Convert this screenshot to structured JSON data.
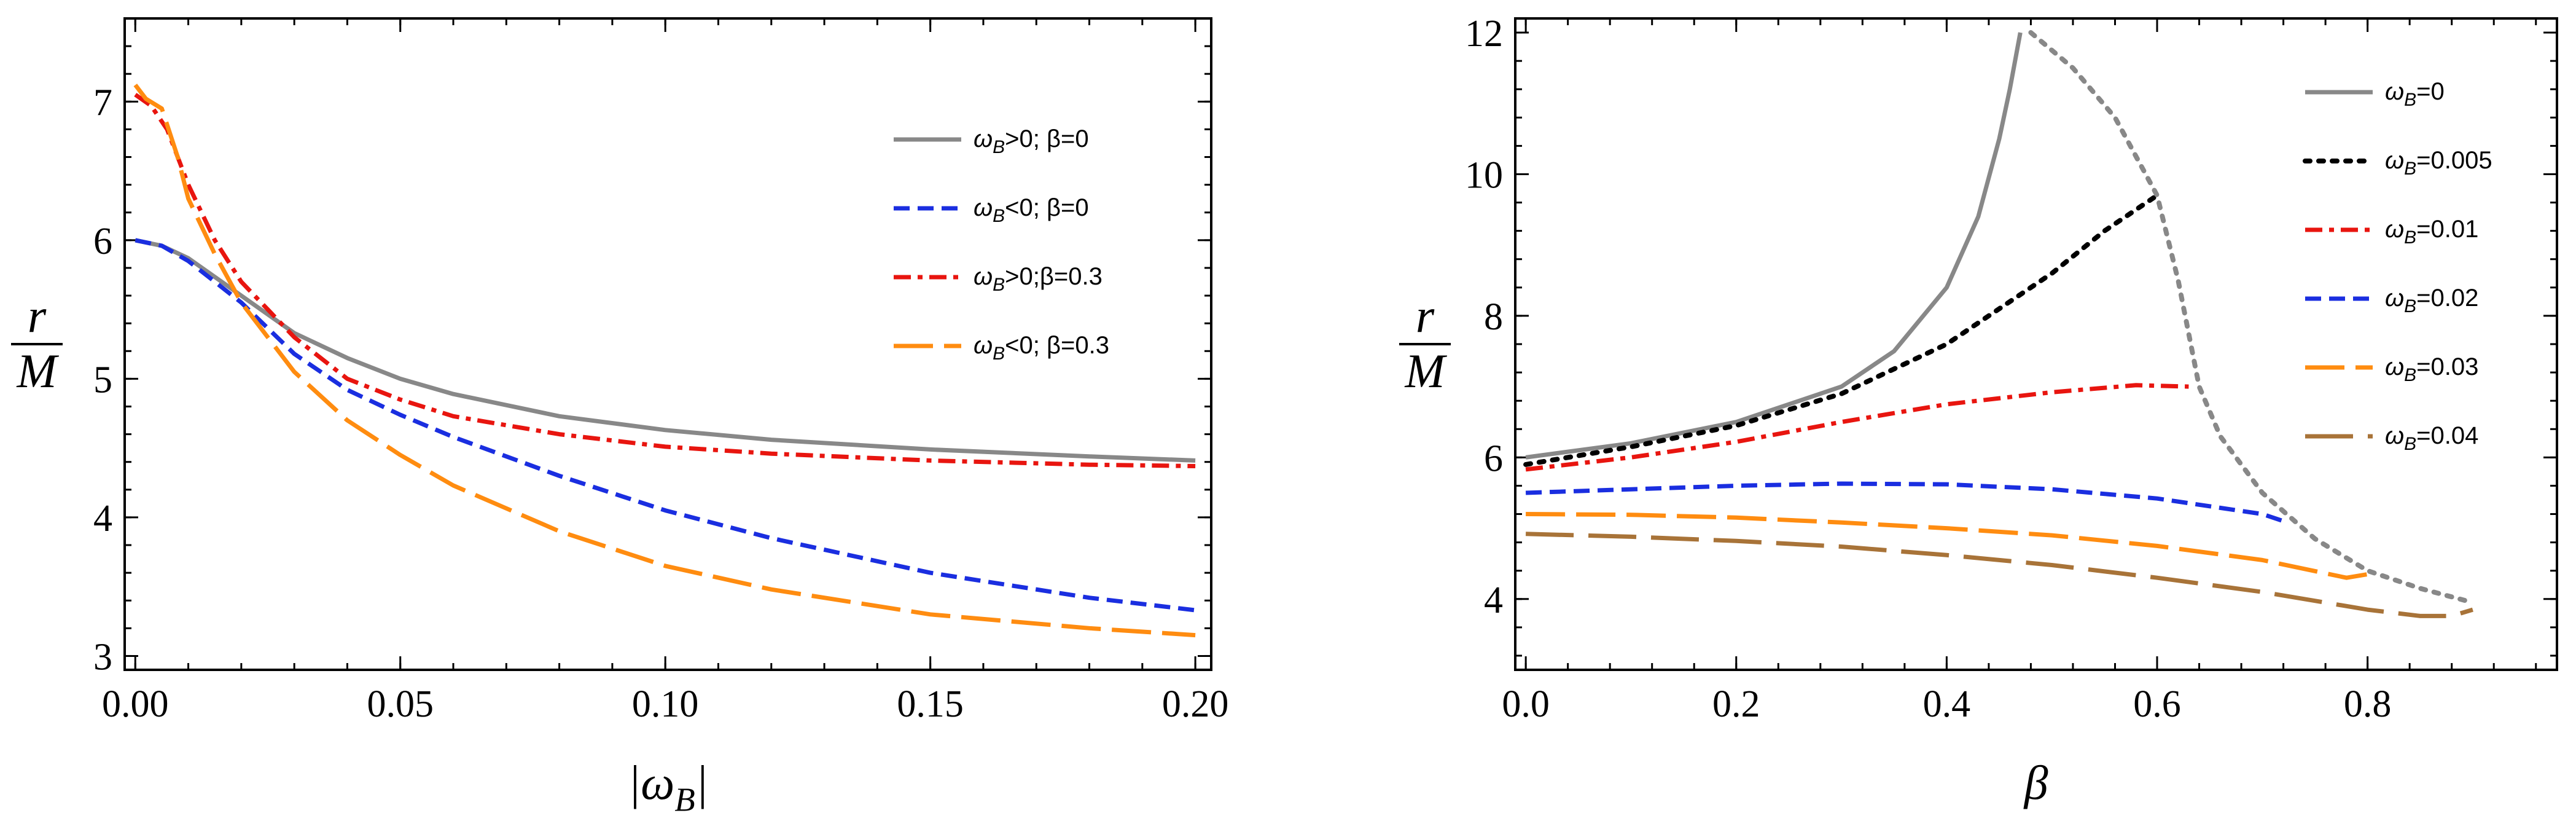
{
  "colors": {
    "gray": "#888888",
    "black": "#000000",
    "red": "#e8150f",
    "blue": "#1a2ee0",
    "orange": "#ff8c10",
    "brown": "#a87338"
  },
  "chart_data": [
    {
      "type": "line",
      "xlabel": "|ω_B|",
      "ylabel_numerator": "r",
      "ylabel_denominator": "M",
      "xlim": [
        -0.002,
        0.203
      ],
      "ylim": [
        2.9,
        7.6
      ],
      "xticks": [
        0.0,
        0.05,
        0.1,
        0.15,
        0.2
      ],
      "xtick_labels": [
        "0.00",
        "0.05",
        "0.10",
        "0.15",
        "0.20"
      ],
      "yticks": [
        3,
        4,
        5,
        6,
        7
      ],
      "ytick_labels": [
        "3",
        "4",
        "5",
        "6",
        "7"
      ],
      "legend_position": "top-right",
      "series": [
        {
          "name": "ω_B>0; β=0",
          "legend_label": "ωB>0; β=0",
          "color": "gray",
          "dash": "solid",
          "x": [
            0,
            0.005,
            0.01,
            0.02,
            0.03,
            0.04,
            0.05,
            0.06,
            0.08,
            0.1,
            0.12,
            0.15,
            0.18,
            0.2
          ],
          "y": [
            6.0,
            5.96,
            5.87,
            5.6,
            5.33,
            5.15,
            5.0,
            4.89,
            4.73,
            4.63,
            4.56,
            4.49,
            4.44,
            4.41
          ]
        },
        {
          "name": "ω_B<0; β=0",
          "legend_label": "ωB<0; β=0",
          "color": "blue",
          "dash": "dashed",
          "x": [
            0,
            0.005,
            0.01,
            0.02,
            0.03,
            0.04,
            0.05,
            0.06,
            0.08,
            0.1,
            0.12,
            0.15,
            0.18,
            0.2
          ],
          "y": [
            6.0,
            5.96,
            5.85,
            5.55,
            5.18,
            4.92,
            4.74,
            4.58,
            4.3,
            4.05,
            3.85,
            3.6,
            3.42,
            3.33
          ]
        },
        {
          "name": "ω_B>0; β=0.3",
          "legend_label": "ωB>0;β=0.3",
          "color": "red",
          "dash": "dash-dot",
          "x": [
            0,
            0.003,
            0.006,
            0.01,
            0.015,
            0.02,
            0.025,
            0.03,
            0.04,
            0.05,
            0.06,
            0.08,
            0.1,
            0.12,
            0.15,
            0.18,
            0.2
          ],
          "y": [
            7.05,
            6.97,
            6.8,
            6.4,
            6.0,
            5.7,
            5.5,
            5.3,
            5.0,
            4.85,
            4.73,
            4.6,
            4.51,
            4.46,
            4.41,
            4.38,
            4.37
          ]
        },
        {
          "name": "ω_B<0; β=0.3",
          "legend_label": "ωB<0; β=0.3",
          "color": "orange",
          "dash": "long-dash",
          "x": [
            0,
            0.002,
            0.005,
            0.008,
            0.01,
            0.015,
            0.02,
            0.025,
            0.03,
            0.04,
            0.05,
            0.06,
            0.08,
            0.1,
            0.12,
            0.15,
            0.18,
            0.2
          ],
          "y": [
            7.12,
            7.02,
            6.95,
            6.6,
            6.3,
            5.9,
            5.55,
            5.3,
            5.05,
            4.7,
            4.45,
            4.23,
            3.9,
            3.65,
            3.48,
            3.3,
            3.2,
            3.15
          ]
        }
      ]
    },
    {
      "type": "line",
      "xlabel": "β",
      "ylabel_numerator": "r",
      "ylabel_denominator": "M",
      "xlim": [
        -0.01,
        0.98
      ],
      "ylim": [
        3.0,
        12.2
      ],
      "xticks": [
        0.0,
        0.2,
        0.4,
        0.6,
        0.8
      ],
      "xtick_labels": [
        "0.0",
        "0.2",
        "0.4",
        "0.6",
        "0.8"
      ],
      "yticks": [
        4,
        6,
        8,
        10,
        12
      ],
      "ytick_labels": [
        "4",
        "6",
        "8",
        "10",
        "12"
      ],
      "legend_position": "top-right",
      "series": [
        {
          "name": "ω_B=0",
          "legend_label": "ωB=0",
          "color": "gray",
          "dash": "solid",
          "x": [
            0,
            0.1,
            0.2,
            0.3,
            0.35,
            0.4,
            0.43,
            0.45,
            0.46,
            0.47
          ],
          "y": [
            6.0,
            6.2,
            6.5,
            7.0,
            7.5,
            8.4,
            9.4,
            10.5,
            11.2,
            12.0
          ]
        },
        {
          "name": "ω_B=0.005",
          "legend_label": "ωB=0.005",
          "color": "black",
          "dash": "dotted",
          "x": [
            0,
            0.1,
            0.2,
            0.3,
            0.4,
            0.5,
            0.55,
            0.6
          ],
          "y": [
            5.9,
            6.15,
            6.45,
            6.9,
            7.6,
            8.6,
            9.2,
            9.7
          ]
        },
        {
          "name": "ω_B=0.01",
          "legend_label": "ωB=0.01",
          "color": "red",
          "dash": "dash-dot",
          "x": [
            0,
            0.1,
            0.2,
            0.3,
            0.4,
            0.5,
            0.58,
            0.63
          ],
          "y": [
            5.83,
            6.0,
            6.22,
            6.5,
            6.75,
            6.92,
            7.02,
            7.0
          ]
        },
        {
          "name": "ω_B=0.02",
          "legend_label": "ωB=0.02",
          "color": "blue",
          "dash": "dashed",
          "x": [
            0,
            0.1,
            0.2,
            0.3,
            0.4,
            0.5,
            0.6,
            0.7,
            0.72
          ],
          "y": [
            5.5,
            5.55,
            5.6,
            5.63,
            5.62,
            5.55,
            5.42,
            5.2,
            5.1
          ]
        },
        {
          "name": "ω_B=0.03",
          "legend_label": "ωB=0.03",
          "color": "orange",
          "dash": "long-dash",
          "x": [
            0,
            0.1,
            0.2,
            0.3,
            0.4,
            0.5,
            0.6,
            0.7,
            0.78,
            0.8
          ],
          "y": [
            5.2,
            5.19,
            5.15,
            5.08,
            5.0,
            4.9,
            4.75,
            4.55,
            4.3,
            4.35
          ]
        },
        {
          "name": "ω_B=0.04",
          "legend_label": "ωB=0.04",
          "color": "brown",
          "dash": "extra-long-dash",
          "x": [
            0,
            0.1,
            0.2,
            0.3,
            0.4,
            0.5,
            0.6,
            0.7,
            0.8,
            0.85,
            0.88,
            0.9
          ],
          "y": [
            4.92,
            4.88,
            4.82,
            4.74,
            4.62,
            4.48,
            4.3,
            4.1,
            3.85,
            3.76,
            3.76,
            3.85
          ]
        },
        {
          "name": "boundary",
          "legend_label": "",
          "color": "gray",
          "dash": "dotted",
          "x": [
            0.48,
            0.52,
            0.56,
            0.6,
            0.62,
            0.64,
            0.66,
            0.7,
            0.75,
            0.8,
            0.85,
            0.9
          ],
          "y": [
            12.0,
            11.5,
            10.8,
            9.7,
            8.5,
            7.0,
            6.3,
            5.5,
            4.85,
            4.4,
            4.15,
            3.95
          ]
        }
      ]
    }
  ]
}
